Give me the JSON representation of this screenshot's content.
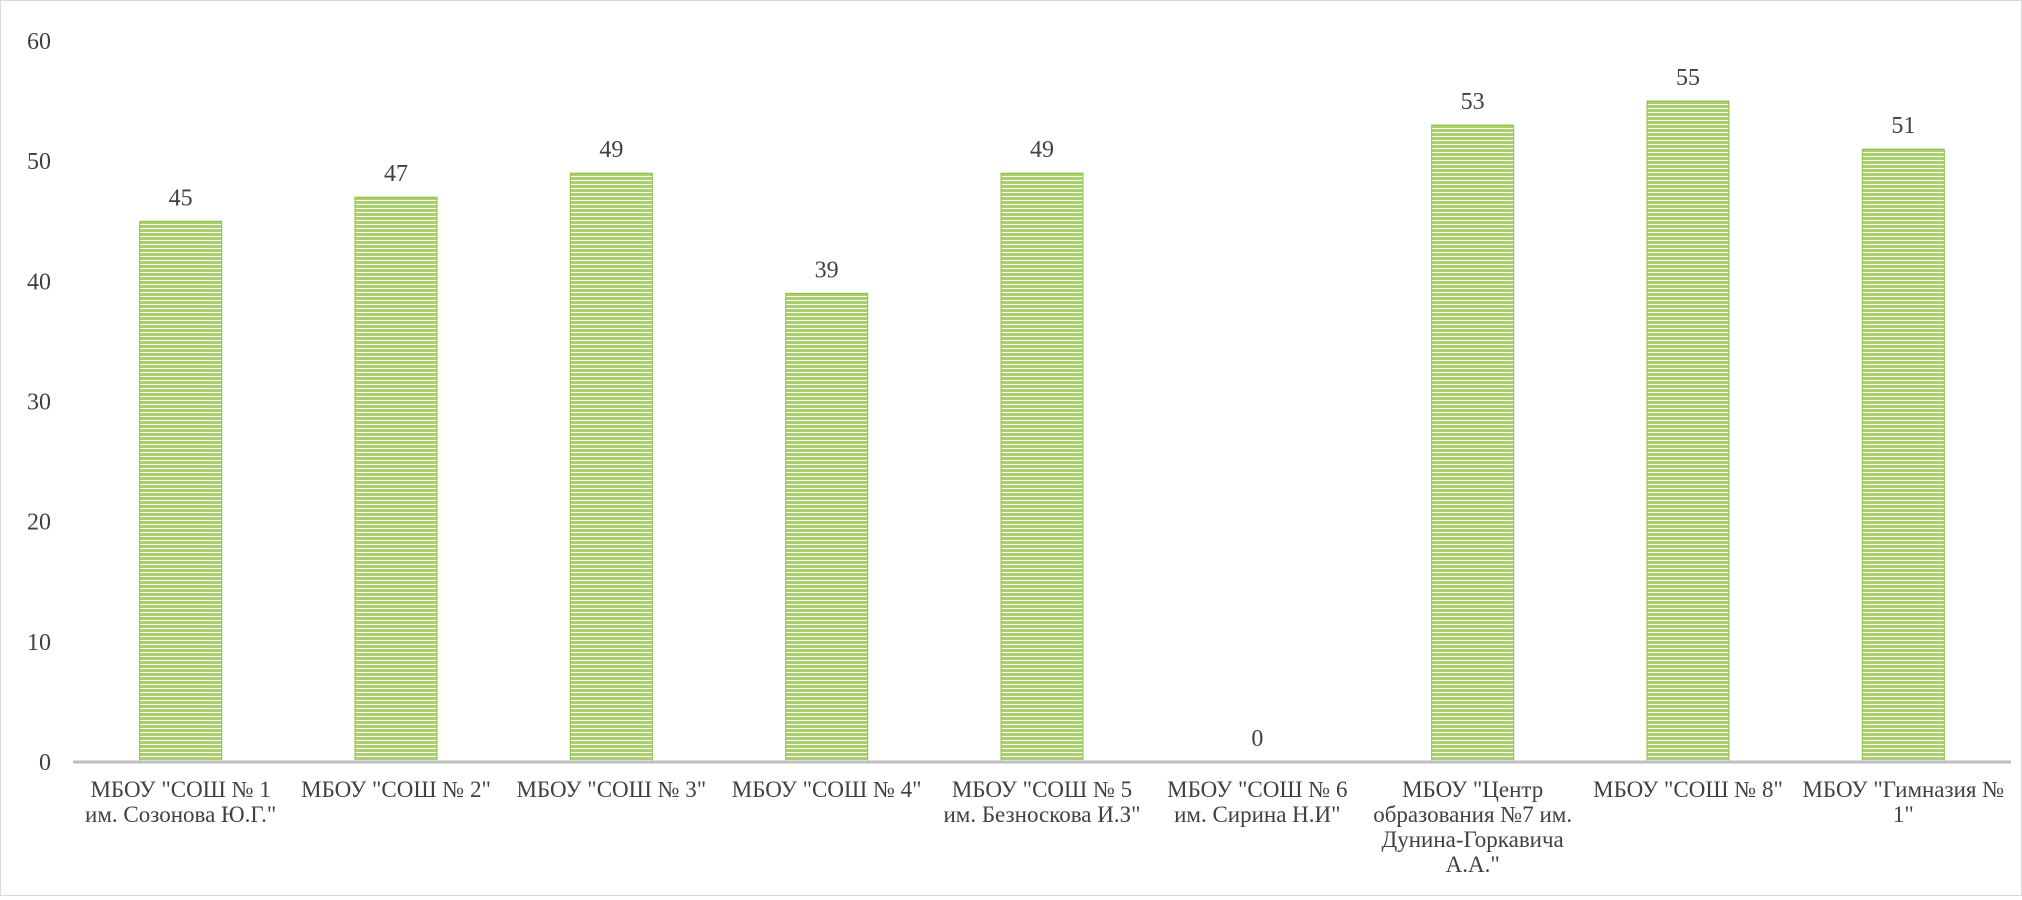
{
  "chart_data": {
    "type": "bar",
    "title": "",
    "xlabel": "",
    "ylabel": "",
    "ylim": [
      0,
      60
    ],
    "y_ticks": [
      0,
      10,
      20,
      30,
      40,
      50,
      60
    ],
    "grid": false,
    "legend": "none",
    "categories": [
      [
        "МБОУ \"СОШ № 1",
        "им. Созонова Ю.Г.\""
      ],
      [
        "МБОУ \"СОШ № 2\""
      ],
      [
        "МБОУ \"СОШ № 3\""
      ],
      [
        "МБОУ \"СОШ № 4\""
      ],
      [
        "МБОУ \"СОШ № 5",
        "им. Безноскова И.З\""
      ],
      [
        "МБОУ \"СОШ № 6",
        "им. Сирина Н.И\""
      ],
      [
        "МБОУ \"Центр",
        "образования №7 им.",
        "Дунина-Горкавича",
        "А.А.\""
      ],
      [
        "МБОУ \"СОШ № 8\""
      ],
      [
        "МБОУ \"Гимназия №",
        "1\""
      ]
    ],
    "values": [
      45,
      47,
      49,
      39,
      49,
      0,
      53,
      55,
      51
    ],
    "colors": {
      "bar_fill": "#a9cf6e",
      "bar_stripe": "#ffffff",
      "bar_edge": "#8cbf45",
      "axis": "#bfbfbf",
      "text": "#404040"
    }
  }
}
